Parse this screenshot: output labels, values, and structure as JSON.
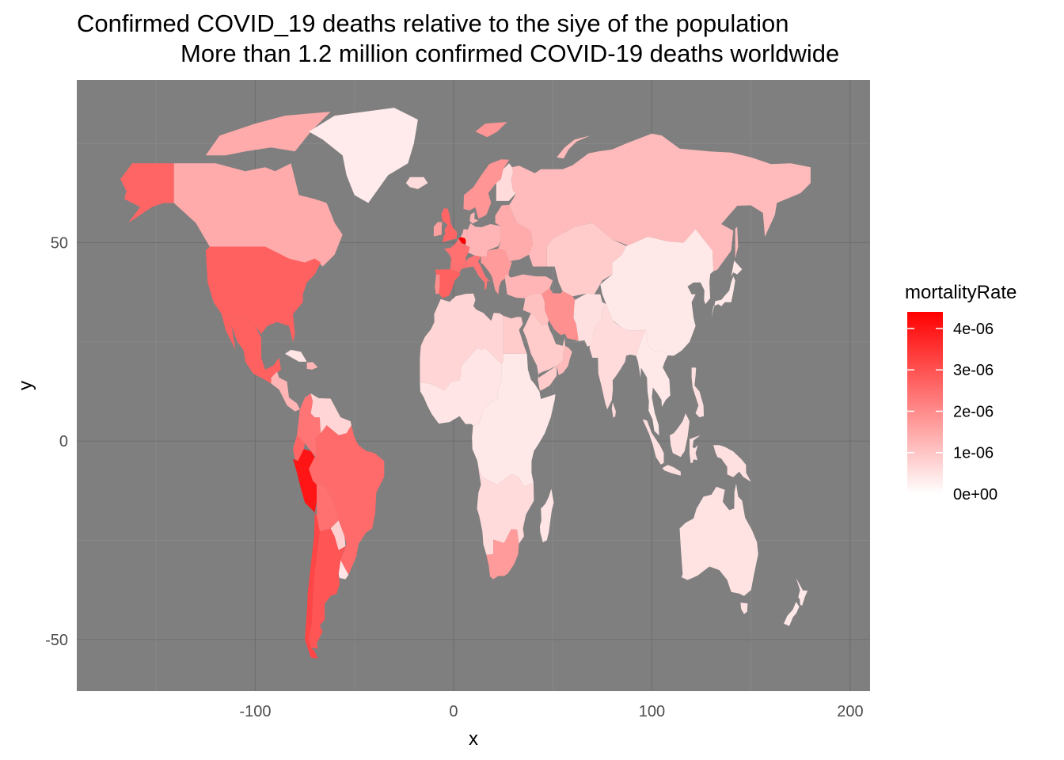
{
  "title_line1": "Confirmed COVID_19 deaths relative to the siye of the population",
  "title_line2": "More than 1.2 million confirmed COVID-19 deaths worldwide",
  "chart_data": {
    "type": "choropleth",
    "xlabel": "x",
    "ylabel": "y",
    "xlim": [
      -190,
      210
    ],
    "ylim": [
      -63,
      91
    ],
    "x_ticks": [
      -100,
      0,
      100,
      200
    ],
    "y_ticks": [
      -50,
      0,
      50
    ],
    "x_tick_labels": [
      "-100",
      "0",
      "100",
      "200"
    ],
    "y_tick_labels": [
      "-50",
      "0",
      "50"
    ],
    "panel_background": "#7f7f7f",
    "grid": true,
    "legend": {
      "title": "mortalityRate",
      "placement": "right",
      "low_color": "#ffffff",
      "high_color": "#ff0000",
      "range": [
        0,
        4.4e-06
      ],
      "breaks": [
        0,
        1e-06,
        2e-06,
        3e-06,
        4e-06
      ],
      "labels": [
        "0e+00",
        "1e-06",
        "2e-06",
        "3e-06",
        "4e-06"
      ]
    },
    "regions": [
      {
        "name": "Alaska (USA)",
        "value": 2.5e-06
      },
      {
        "name": "Canada",
        "value": 1.2e-06
      },
      {
        "name": "Greenland",
        "value": 0
      },
      {
        "name": "United States",
        "value": 2.6e-06
      },
      {
        "name": "Mexico",
        "value": 2.6e-06
      },
      {
        "name": "Central America",
        "value": 1e-06
      },
      {
        "name": "Cuba",
        "value": 1e-07
      },
      {
        "name": "Venezuela / Guianas",
        "value": 4e-07
      },
      {
        "name": "Colombia",
        "value": 2.2e-06
      },
      {
        "name": "Ecuador",
        "value": 2.5e-06
      },
      {
        "name": "Peru",
        "value": 4e-06
      },
      {
        "name": "Brazil",
        "value": 2.4e-06
      },
      {
        "name": "Bolivia",
        "value": 2.3e-06
      },
      {
        "name": "Paraguay",
        "value": 5e-07
      },
      {
        "name": "Uruguay",
        "value": 1e-07
      },
      {
        "name": "Chile",
        "value": 3.1e-06
      },
      {
        "name": "Argentina",
        "value": 2.8e-06
      },
      {
        "name": "United Kingdom",
        "value": 2.5e-06
      },
      {
        "name": "Ireland",
        "value": 1.4e-06
      },
      {
        "name": "Iceland",
        "value": 3e-07
      },
      {
        "name": "Scandinavia",
        "value": 1.6e-06
      },
      {
        "name": "Finland",
        "value": 3e-07
      },
      {
        "name": "France",
        "value": 2.3e-06
      },
      {
        "name": "Spain",
        "value": 2.6e-06
      },
      {
        "name": "Portugal",
        "value": 1.7e-06
      },
      {
        "name": "Italy",
        "value": 2.2e-06
      },
      {
        "name": "Belgium",
        "value": 4.4e-06
      },
      {
        "name": "Central Europe",
        "value": 1e-06
      },
      {
        "name": "Eastern Europe",
        "value": 1.2e-06
      },
      {
        "name": "Balkans",
        "value": 1.5e-06
      },
      {
        "name": "Russia",
        "value": 9e-07
      },
      {
        "name": "Kazakhstan / Central Asia",
        "value": 6e-07
      },
      {
        "name": "China / Mongolia",
        "value": 5e-08
      },
      {
        "name": "Turkey / Caucasus",
        "value": 1e-06
      },
      {
        "name": "Iran",
        "value": 1.7e-06
      },
      {
        "name": "Iraq / Syria",
        "value": 8e-07
      },
      {
        "name": "Saudi Arabia / Gulf",
        "value": 6e-07
      },
      {
        "name": "Oman",
        "value": 9e-07
      },
      {
        "name": "Afghanistan / Pakistan",
        "value": 2e-07
      },
      {
        "name": "India",
        "value": 3e-07
      },
      {
        "name": "Southeast Asia",
        "value": 5e-08
      },
      {
        "name": "Indonesia",
        "value": 2e-07
      },
      {
        "name": "Philippines",
        "value": 2e-07
      },
      {
        "name": "Japan",
        "value": 5e-08
      },
      {
        "name": "North Africa",
        "value": 4e-07
      },
      {
        "name": "Egypt",
        "value": 6e-07
      },
      {
        "name": "Sahel / West Africa",
        "value": 1e-07
      },
      {
        "name": "Central / East Africa",
        "value": 5e-08
      },
      {
        "name": "Southern Africa",
        "value": 3e-07
      },
      {
        "name": "South Africa",
        "value": 1.5e-06
      },
      {
        "name": "Madagascar",
        "value": 1e-07
      },
      {
        "name": "Australia",
        "value": 1.5e-07
      },
      {
        "name": "New Zealand",
        "value": 5e-08
      }
    ]
  }
}
